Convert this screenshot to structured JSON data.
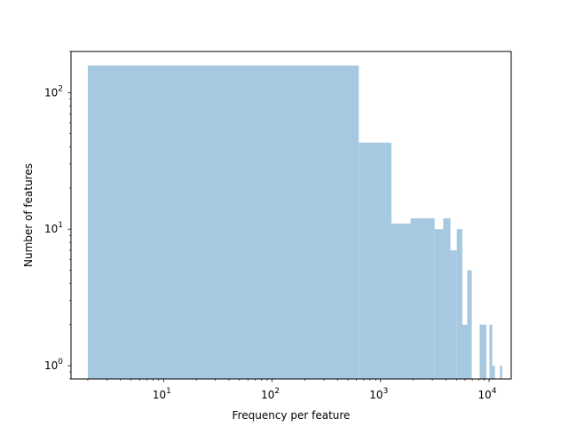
{
  "chart_data": {
    "type": "bar",
    "title": "",
    "xlabel": "Frequency per feature",
    "ylabel": "Number of features",
    "xscale": "log",
    "yscale": "log",
    "xlim": [
      1.4,
      16000
    ],
    "ylim": [
      0.8,
      200
    ],
    "grid": false,
    "legend": "none",
    "bar_color": "#a6c8e0",
    "x_ticks": [
      {
        "value": 10,
        "base": "10",
        "exp": "1"
      },
      {
        "value": 100,
        "base": "10",
        "exp": "2"
      },
      {
        "value": 1000,
        "base": "10",
        "exp": "3"
      },
      {
        "value": 10000,
        "base": "10",
        "exp": "4"
      }
    ],
    "y_ticks": [
      {
        "value": 1,
        "base": "10",
        "exp": "0"
      },
      {
        "value": 10,
        "base": "10",
        "exp": "1"
      },
      {
        "value": 100,
        "base": "10",
        "exp": "2"
      }
    ],
    "bins": [
      {
        "x0": 2,
        "x1": 630,
        "count": 158
      },
      {
        "x0": 630,
        "x1": 1260,
        "count": 43
      },
      {
        "x0": 1260,
        "x1": 1890,
        "count": 11
      },
      {
        "x0": 1890,
        "x1": 3150,
        "count": 12
      },
      {
        "x0": 3150,
        "x1": 3780,
        "count": 10
      },
      {
        "x0": 3780,
        "x1": 4410,
        "count": 12
      },
      {
        "x0": 4410,
        "x1": 5040,
        "count": 7
      },
      {
        "x0": 5040,
        "x1": 5670,
        "count": 10
      },
      {
        "x0": 5670,
        "x1": 6300,
        "count": 2
      },
      {
        "x0": 6300,
        "x1": 6930,
        "count": 5
      },
      {
        "x0": 8190,
        "x1": 9450,
        "count": 2
      },
      {
        "x0": 10080,
        "x1": 10710,
        "count": 2
      },
      {
        "x0": 10710,
        "x1": 11340,
        "count": 1
      },
      {
        "x0": 12600,
        "x1": 13230,
        "count": 1
      }
    ]
  }
}
